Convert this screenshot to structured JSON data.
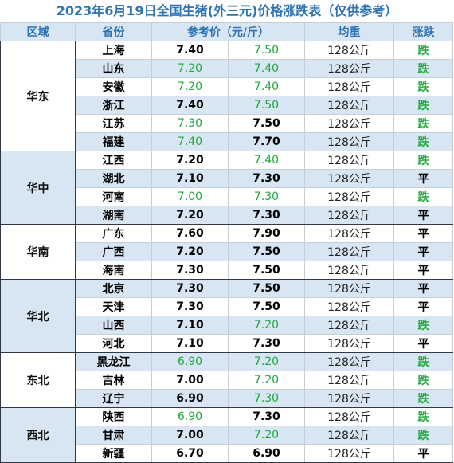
{
  "title": "2023年6月19日全国生猪(外三元)价格涨跌表（仅供参考）",
  "headers": {
    "region": "区域",
    "province": "省份",
    "price": "参考价（元/斤）",
    "weight": "均重",
    "trend": "涨跌"
  },
  "colors": {
    "green": "#1fa83c",
    "header_blue": "#2e74b5",
    "band_blue": "#d8e6f3"
  },
  "groups": [
    {
      "region": "华东",
      "rows": [
        {
          "province": "上海",
          "price_prev": "7.40",
          "price_prev_color": "black",
          "price_now": "7.50",
          "price_now_color": "green",
          "weight": "128公斤",
          "trend": "跌",
          "trend_color": "green"
        },
        {
          "province": "山东",
          "price_prev": "7.20",
          "price_prev_color": "green",
          "price_now": "7.40",
          "price_now_color": "green",
          "weight": "128公斤",
          "trend": "跌",
          "trend_color": "green"
        },
        {
          "province": "安徽",
          "price_prev": "7.20",
          "price_prev_color": "green",
          "price_now": "7.40",
          "price_now_color": "green",
          "weight": "128公斤",
          "trend": "跌",
          "trend_color": "green"
        },
        {
          "province": "浙江",
          "price_prev": "7.40",
          "price_prev_color": "black",
          "price_now": "7.50",
          "price_now_color": "green",
          "weight": "128公斤",
          "trend": "跌",
          "trend_color": "green"
        },
        {
          "province": "江苏",
          "price_prev": "7.30",
          "price_prev_color": "green",
          "price_now": "7.50",
          "price_now_color": "black",
          "weight": "128公斤",
          "trend": "跌",
          "trend_color": "green"
        },
        {
          "province": "福建",
          "price_prev": "7.40",
          "price_prev_color": "green",
          "price_now": "7.70",
          "price_now_color": "black",
          "weight": "128公斤",
          "trend": "跌",
          "trend_color": "green"
        }
      ]
    },
    {
      "region": "华中",
      "rows": [
        {
          "province": "江西",
          "price_prev": "7.20",
          "price_prev_color": "black",
          "price_now": "7.40",
          "price_now_color": "green",
          "weight": "128公斤",
          "trend": "跌",
          "trend_color": "green"
        },
        {
          "province": "湖北",
          "price_prev": "7.10",
          "price_prev_color": "black",
          "price_now": "7.30",
          "price_now_color": "black",
          "weight": "128公斤",
          "trend": "平",
          "trend_color": "black"
        },
        {
          "province": "河南",
          "price_prev": "7.00",
          "price_prev_color": "green",
          "price_now": "7.30",
          "price_now_color": "green",
          "weight": "128公斤",
          "trend": "跌",
          "trend_color": "green"
        },
        {
          "province": "湖南",
          "price_prev": "7.20",
          "price_prev_color": "black",
          "price_now": "7.30",
          "price_now_color": "black",
          "weight": "128公斤",
          "trend": "平",
          "trend_color": "black"
        }
      ]
    },
    {
      "region": "华南",
      "rows": [
        {
          "province": "广东",
          "price_prev": "7.60",
          "price_prev_color": "black",
          "price_now": "7.90",
          "price_now_color": "black",
          "weight": "128公斤",
          "trend": "平",
          "trend_color": "black"
        },
        {
          "province": "广西",
          "price_prev": "7.20",
          "price_prev_color": "black",
          "price_now": "7.50",
          "price_now_color": "black",
          "weight": "128公斤",
          "trend": "平",
          "trend_color": "black"
        },
        {
          "province": "海南",
          "price_prev": "7.30",
          "price_prev_color": "black",
          "price_now": "7.50",
          "price_now_color": "black",
          "weight": "128公斤",
          "trend": "平",
          "trend_color": "black"
        }
      ]
    },
    {
      "region": "华北",
      "rows": [
        {
          "province": "北京",
          "price_prev": "7.30",
          "price_prev_color": "black",
          "price_now": "7.50",
          "price_now_color": "black",
          "weight": "128公斤",
          "trend": "平",
          "trend_color": "black"
        },
        {
          "province": "天津",
          "price_prev": "7.30",
          "price_prev_color": "black",
          "price_now": "7.50",
          "price_now_color": "black",
          "weight": "128公斤",
          "trend": "平",
          "trend_color": "black"
        },
        {
          "province": "山西",
          "price_prev": "7.10",
          "price_prev_color": "black",
          "price_now": "7.20",
          "price_now_color": "green",
          "weight": "128公斤",
          "trend": "跌",
          "trend_color": "green"
        },
        {
          "province": "河北",
          "price_prev": "7.10",
          "price_prev_color": "black",
          "price_now": "7.30",
          "price_now_color": "black",
          "weight": "128公斤",
          "trend": "平",
          "trend_color": "black"
        }
      ]
    },
    {
      "region": "东北",
      "rows": [
        {
          "province": "黑龙江",
          "price_prev": "6.90",
          "price_prev_color": "green",
          "price_now": "7.20",
          "price_now_color": "green",
          "weight": "128公斤",
          "trend": "跌",
          "trend_color": "green"
        },
        {
          "province": "吉林",
          "price_prev": "7.00",
          "price_prev_color": "black",
          "price_now": "7.20",
          "price_now_color": "green",
          "weight": "128公斤",
          "trend": "跌",
          "trend_color": "green"
        },
        {
          "province": "辽宁",
          "price_prev": "6.90",
          "price_prev_color": "black",
          "price_now": "7.30",
          "price_now_color": "green",
          "weight": "128公斤",
          "trend": "跌",
          "trend_color": "green"
        }
      ]
    },
    {
      "region": "西北",
      "rows": [
        {
          "province": "陕西",
          "price_prev": "6.90",
          "price_prev_color": "green",
          "price_now": "7.30",
          "price_now_color": "black",
          "weight": "128公斤",
          "trend": "跌",
          "trend_color": "green"
        },
        {
          "province": "甘肃",
          "price_prev": "7.00",
          "price_prev_color": "black",
          "price_now": "7.20",
          "price_now_color": "green",
          "weight": "128公斤",
          "trend": "跌",
          "trend_color": "green"
        },
        {
          "province": "新疆",
          "price_prev": "6.70",
          "price_prev_color": "black",
          "price_now": "6.90",
          "price_now_color": "black",
          "weight": "128公斤",
          "trend": "平",
          "trend_color": "black"
        }
      ]
    }
  ]
}
